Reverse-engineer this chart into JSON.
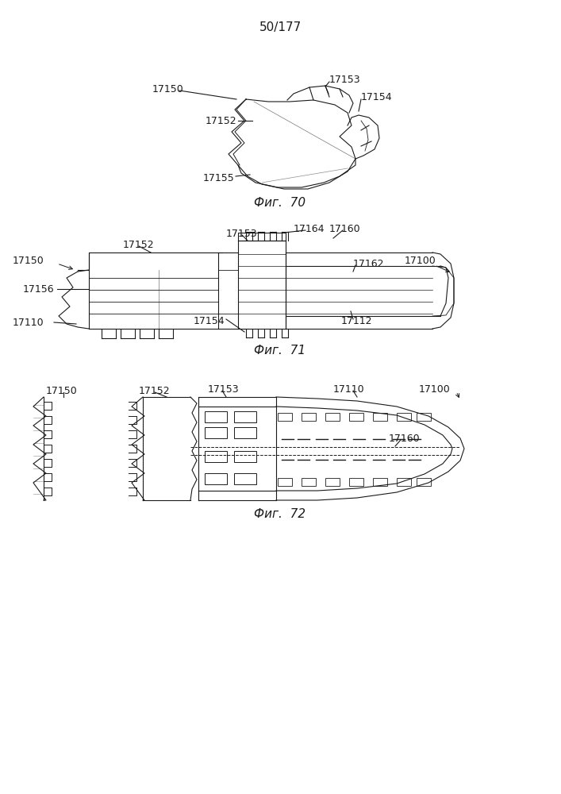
{
  "page_number": "50/177",
  "fig70_label": "Фиг.  70",
  "fig71_label": "Фиг.  71",
  "fig72_label": "Фиг.  72",
  "bg_color": "#ffffff",
  "line_color": "#1a1a1a",
  "label_color": "#1a1a1a",
  "font_size_label": 9,
  "font_size_fig": 11,
  "fig_width": 7.07,
  "fig_height": 10.0
}
